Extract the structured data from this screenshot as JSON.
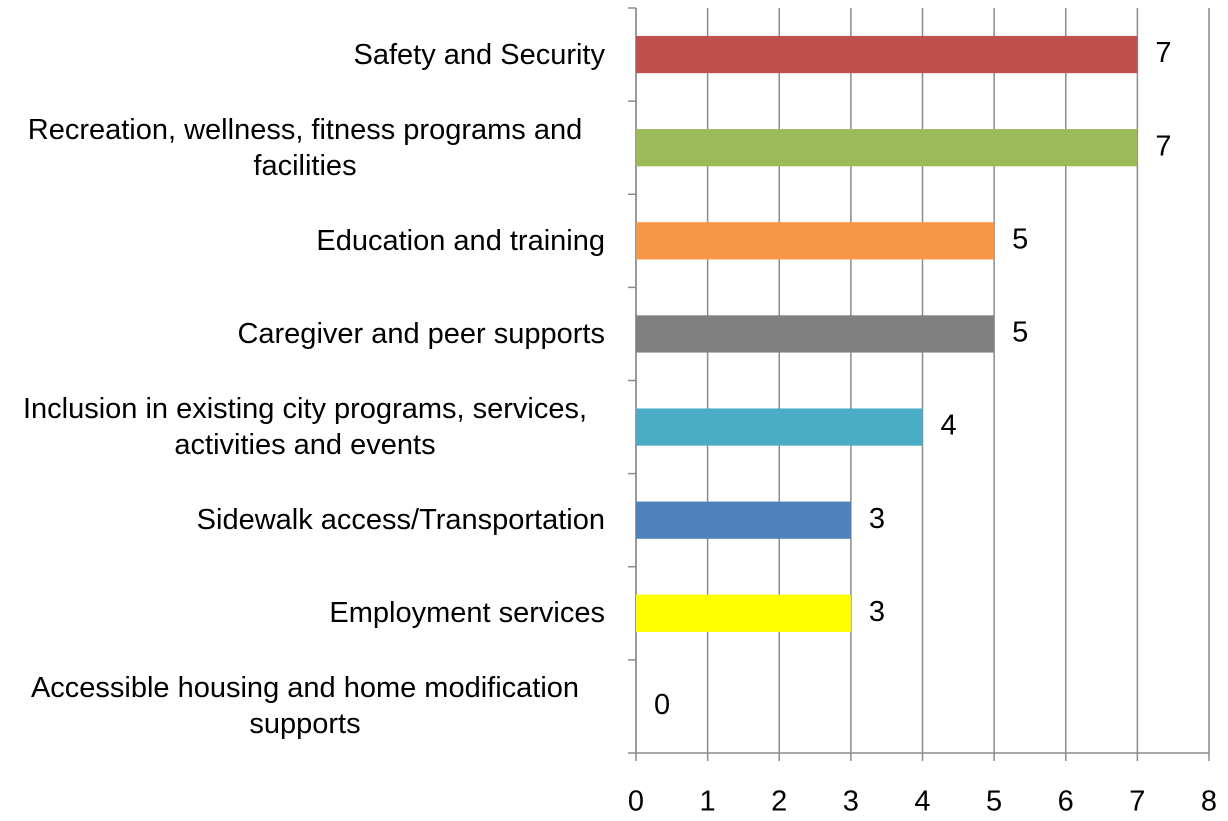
{
  "chart_data": {
    "type": "bar",
    "orientation": "horizontal",
    "categories": [
      "Safety and Security",
      "Recreation, wellness, fitness programs and facilities",
      "Education and training",
      "Caregiver and peer supports",
      "Inclusion in existing city programs, services, activities and events",
      "Sidewalk access/Transportation",
      "Employment services",
      "Accessible housing and home modification supports"
    ],
    "values": [
      7,
      7,
      5,
      5,
      4,
      3,
      3,
      0
    ],
    "colors": [
      "#c0504d",
      "#9bbb59",
      "#f79646",
      "#808080",
      "#4bacc6",
      "#4f81bd",
      "#ffff00",
      "#000000"
    ],
    "xlim": [
      0,
      8
    ],
    "xticks": [
      0,
      1,
      2,
      3,
      4,
      5,
      6,
      7,
      8
    ],
    "grid": true
  }
}
